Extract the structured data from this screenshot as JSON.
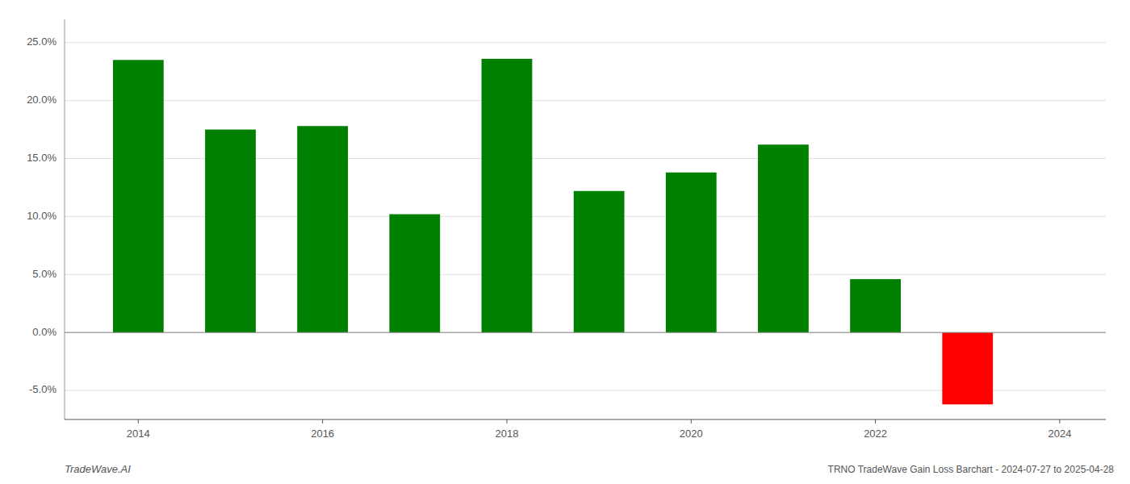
{
  "chart_data": {
    "type": "bar",
    "title": "TRNO TradeWave Gain Loss Barchart - 2024-07-27 to 2025-04-28",
    "annotations": [
      "TradeWave.AI"
    ],
    "x": [
      2014,
      2015,
      2016,
      2017,
      2018,
      2019,
      2020,
      2021,
      2022,
      2023
    ],
    "values": [
      0.235,
      0.175,
      0.178,
      0.102,
      0.236,
      0.122,
      0.138,
      0.162,
      0.046,
      -0.062
    ],
    "colors": [
      "#008000",
      "#008000",
      "#008000",
      "#008000",
      "#008000",
      "#008000",
      "#008000",
      "#008000",
      "#008000",
      "#ff0000"
    ],
    "xlim": [
      2013.2,
      2024.5
    ],
    "xticks": [
      2014,
      2016,
      2018,
      2020,
      2022,
      2024
    ],
    "ylim": [
      -0.075,
      0.27
    ],
    "yticks": [
      {
        "value": -0.05,
        "label": "-5.0%"
      },
      {
        "value": 0.0,
        "label": "0.0%"
      },
      {
        "value": 0.05,
        "label": "5.0%"
      },
      {
        "value": 0.1,
        "label": "10.0%"
      },
      {
        "value": 0.15,
        "label": "15.0%"
      },
      {
        "value": 0.2,
        "label": "20.0%"
      },
      {
        "value": 0.25,
        "label": "25.0%"
      }
    ],
    "grid": true
  }
}
